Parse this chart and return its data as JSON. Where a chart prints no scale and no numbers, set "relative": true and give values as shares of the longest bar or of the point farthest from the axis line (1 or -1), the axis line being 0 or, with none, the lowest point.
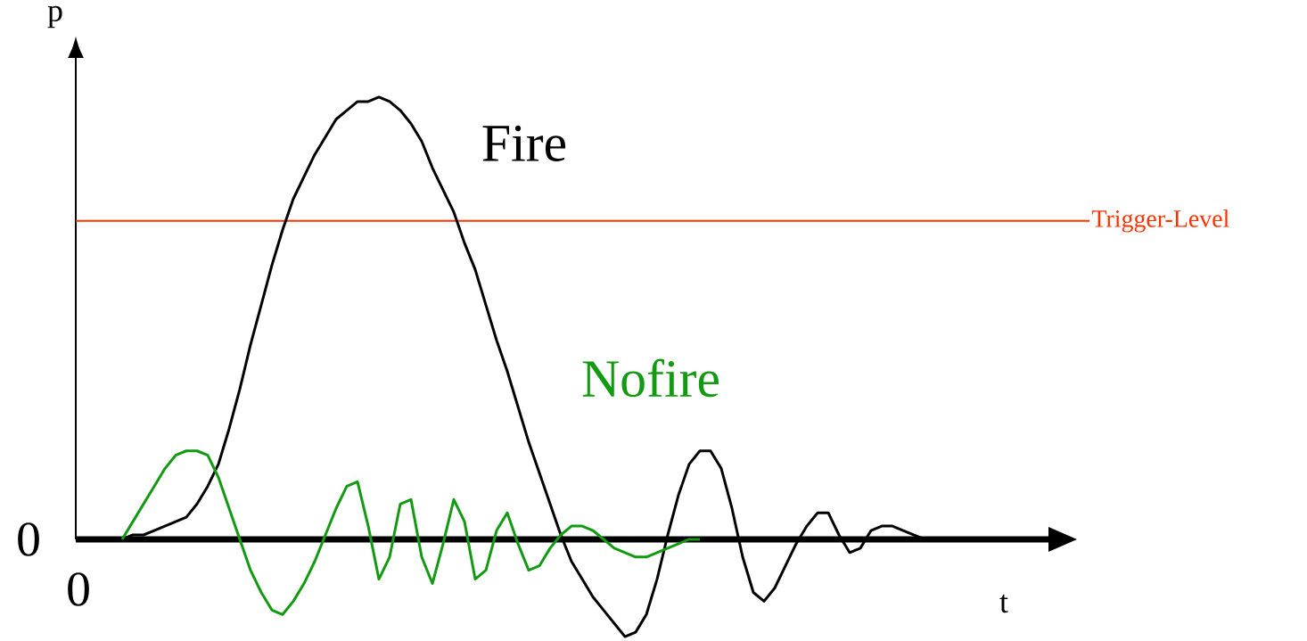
{
  "chart_data": {
    "type": "line",
    "relative": true,
    "xlabel": "t",
    "ylabel": "p",
    "categories": [
      null,
      null,
      null,
      null,
      null,
      null,
      null,
      null,
      null,
      null,
      null,
      null,
      null,
      null,
      null,
      null,
      null,
      null,
      null,
      null,
      null,
      null,
      null,
      null,
      null,
      null,
      null,
      null,
      null,
      null,
      null,
      null,
      null,
      null,
      null,
      null,
      null,
      null,
      null,
      null,
      null,
      null,
      null,
      null,
      null,
      null,
      null,
      null,
      null,
      null,
      null,
      null,
      null,
      null,
      null,
      null,
      null,
      null,
      null,
      null,
      null,
      null,
      null,
      null,
      null,
      null,
      null,
      null,
      null,
      null,
      null,
      null,
      null,
      null,
      null,
      null
    ],
    "series": [
      {
        "name": "Fire",
        "color": "#000000",
        "values": [
          0,
          0.01,
          0.01,
          0.02,
          0.03,
          0.04,
          0.05,
          0.08,
          0.12,
          0.17,
          0.25,
          0.34,
          0.44,
          0.53,
          0.62,
          0.7,
          0.77,
          0.82,
          0.87,
          0.91,
          0.95,
          0.97,
          0.99,
          0.99,
          1,
          0.99,
          0.97,
          0.94,
          0.9,
          0.84,
          0.79,
          0.74,
          0.67,
          0.61,
          0.53,
          0.45,
          0.38,
          0.3,
          0.22,
          0.15,
          0.08,
          0.01,
          -0.05,
          -0.09,
          -0.13,
          -0.16,
          -0.19,
          -0.22,
          -0.21,
          -0.17,
          -0.09,
          0.01,
          0.1,
          0.17,
          0.2,
          0.2,
          0.16,
          0.07,
          -0.04,
          -0.12,
          -0.14,
          -0.11,
          -0.06,
          -0.01,
          0.03,
          0.06,
          0.06,
          0.01,
          -0.03,
          -0.02,
          0.02,
          0.03,
          0.03,
          0.02,
          0.01,
          0
        ]
      },
      {
        "name": "Nofire",
        "color": "#129a12",
        "values": [
          0,
          0.04,
          0.08,
          0.12,
          0.16,
          0.19,
          0.2,
          0.2,
          0.19,
          0.14,
          0.07,
          0.0,
          -0.07,
          -0.12,
          -0.16,
          -0.17,
          -0.14,
          -0.1,
          -0.05,
          0.01,
          0.07,
          0.12,
          0.13,
          0.03,
          -0.09,
          -0.04,
          0.08,
          0.09,
          -0.04,
          -0.1,
          -0.01,
          0.09,
          0.04,
          -0.09,
          -0.07,
          0.02,
          0.06,
          -0.01,
          -0.07,
          -0.06,
          -0.02,
          0.01,
          0.03,
          0.03,
          0.02,
          0.0,
          -0.02,
          -0.03,
          -0.04,
          -0.04,
          -0.03,
          -0.02,
          -0.01,
          0.0,
          0,
          null,
          null,
          null,
          null,
          null,
          null,
          null,
          null,
          null,
          null,
          null,
          null,
          null,
          null,
          null,
          null,
          null,
          null,
          null,
          null,
          null
        ]
      }
    ],
    "ref_lines": [
      {
        "axis": "y",
        "value": 0.72,
        "label": "Trigger-Level",
        "color": "#ff3300"
      }
    ],
    "annotations": [
      "0",
      "0"
    ]
  }
}
